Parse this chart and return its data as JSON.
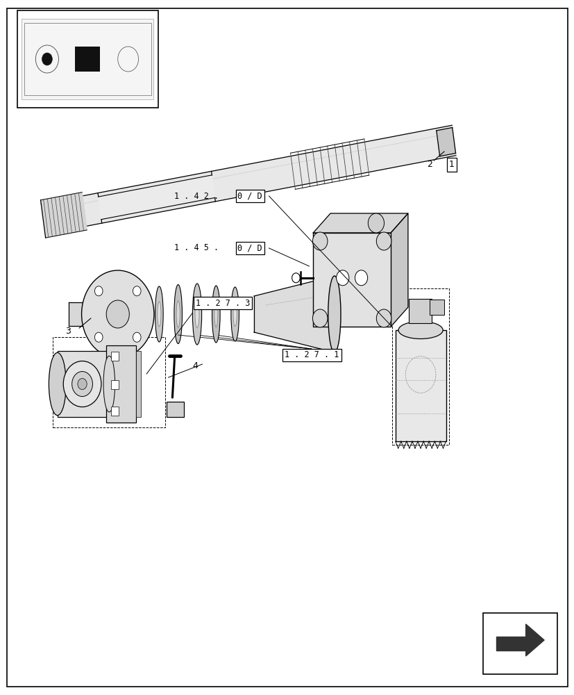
{
  "bg_color": "#ffffff",
  "line_color": "#000000",
  "light_gray": "#cccccc",
  "dark_gray": "#888888",
  "fig_width": 8.28,
  "fig_height": 10.0,
  "dpi": 100
}
